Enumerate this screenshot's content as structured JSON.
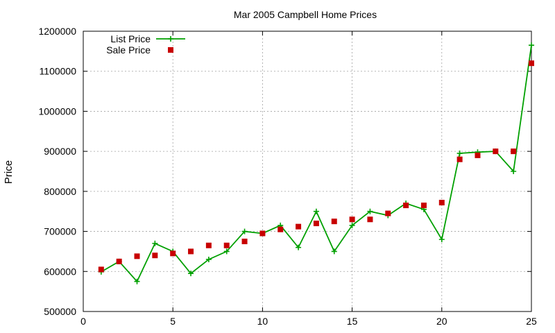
{
  "chart_data": {
    "type": "line",
    "title": "Mar 2005 Campbell Home Prices",
    "xlabel": "",
    "ylabel": "Price",
    "xlim": [
      0,
      25
    ],
    "ylim": [
      500000,
      1200000
    ],
    "xticks": [
      0,
      5,
      10,
      15,
      20,
      25
    ],
    "yticks": [
      500000,
      600000,
      700000,
      800000,
      900000,
      1000000,
      1100000,
      1200000
    ],
    "grid": true,
    "legend_position": "top-left",
    "x": [
      1,
      2,
      3,
      4,
      5,
      6,
      7,
      8,
      9,
      10,
      11,
      12,
      13,
      14,
      15,
      16,
      17,
      18,
      19,
      20,
      21,
      22,
      23,
      24,
      25
    ],
    "series": [
      {
        "name": "List Price",
        "style": "line-plus",
        "color": "#00a000",
        "values": [
          599000,
          625000,
          575000,
          670000,
          650000,
          595000,
          630000,
          650000,
          700000,
          695000,
          715000,
          660000,
          750000,
          650000,
          715000,
          750000,
          740000,
          770000,
          755000,
          680000,
          895000,
          898000,
          900000,
          850000,
          1165000
        ]
      },
      {
        "name": "Sale Price",
        "style": "square-marker",
        "color": "#c80000",
        "values": [
          605000,
          625000,
          638000,
          640000,
          645000,
          650000,
          665000,
          665000,
          675000,
          695000,
          705000,
          712000,
          720000,
          725000,
          730000,
          730000,
          745000,
          765000,
          765000,
          772000,
          880000,
          890000,
          900000,
          900000,
          1120000
        ]
      }
    ]
  }
}
